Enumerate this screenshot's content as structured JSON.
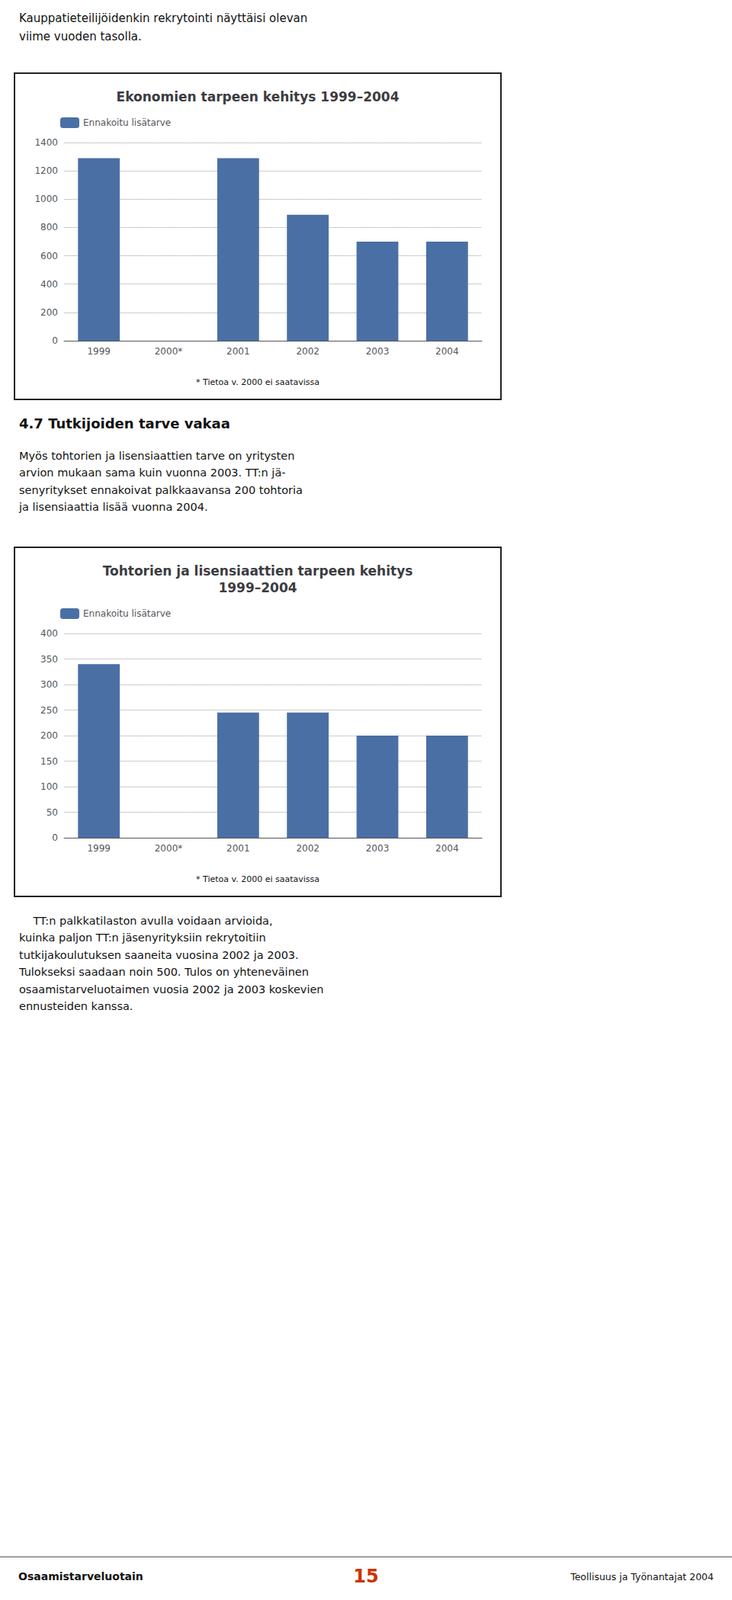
{
  "texts": {
    "intro_text": "Kauppatieteilijöidenkin rekrytointi näyttäisi olevan\nviime vuoden tasolla.",
    "section_heading": "4.7 Tutkijoiden tarve vakaa",
    "section_text": "Myös tohtorien ja lisensiaattien tarve on yritysten\narvion mukaan sama kuin vuonna 2003. TT:n jä-\nsenyritykset ennakoivat palkkaavansa 200 tohtoria\nja lisensiaattia lisää vuonna 2004.",
    "body_text": "    TT:n palkkatilaston avulla voidaan arvioida,\nkuinka paljon TT:n jäsenyrityksiin rekrytoitiin\ntutkijakoulutuksen saaneita vuosina 2002 ja 2003.\nTulokseksi saadaan noin 500. Tulos on yhteneväinen\nosaamistarveluotaimen vuosia 2002 ja 2003 koskevien\nennusteiden kanssa.",
    "footer_left": "Osaamistarveluotain",
    "footer_number": "15",
    "footer_right": "Teollisuus ja Työnantajat 2004"
  },
  "chart_data": [
    {
      "type": "bar",
      "title": "Ekonomien tarpeen kehitys 1999–2004",
      "categories": [
        "1999",
        "2000*",
        "2001",
        "2002",
        "2003",
        "2004"
      ],
      "series": [
        {
          "name": "Ennakoitu lisätarve",
          "color": "#4a6fa5",
          "values": [
            1290,
            0,
            1290,
            890,
            700,
            700
          ]
        }
      ],
      "annotations": [
        "* Tietoa v. 2000 ei saatavissa"
      ],
      "ylim": [
        0,
        1400
      ],
      "yticks": [
        0,
        200,
        400,
        600,
        800,
        1000,
        1200,
        1400
      ],
      "grid": true,
      "legend": "upper left"
    },
    {
      "type": "bar",
      "title": "Tohtorien ja lisensiaattien tarpeen kehitys\n1999–2004",
      "categories": [
        "1999",
        "2000*",
        "2001",
        "2002",
        "2003",
        "2004"
      ],
      "series": [
        {
          "name": "Ennakoitu lisätarve",
          "color": "#4a6fa5",
          "values": [
            340,
            0,
            245,
            245,
            200,
            200
          ]
        }
      ],
      "annotations": [
        "* Tietoa v. 2000 ei saatavissa"
      ],
      "ylim": [
        0,
        400
      ],
      "yticks": [
        0,
        50,
        100,
        150,
        200,
        250,
        300,
        350,
        400
      ],
      "grid": true,
      "legend": "upper left"
    }
  ]
}
